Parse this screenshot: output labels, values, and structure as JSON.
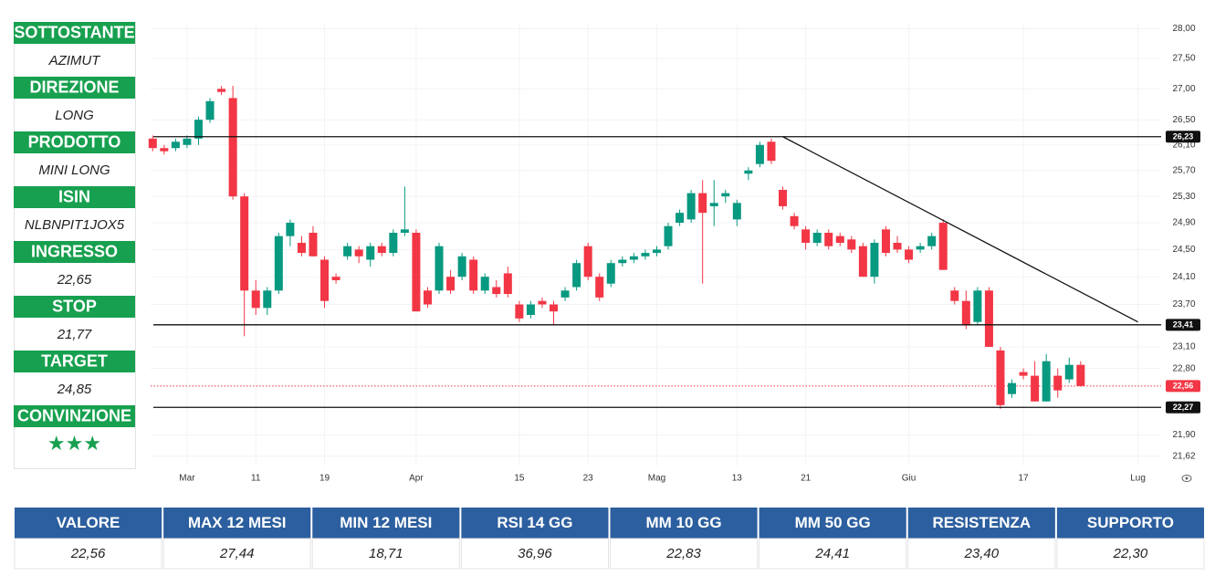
{
  "panel": [
    {
      "label": "SOTTOSTANTE",
      "value": "AZIMUT"
    },
    {
      "label": "DIREZIONE",
      "value": "LONG"
    },
    {
      "label": "PRODOTTO",
      "value": "MINI LONG"
    },
    {
      "label": "ISIN",
      "value": "NLBNPIT1JOX5"
    },
    {
      "label": "INGRESSO",
      "value": "22,65"
    },
    {
      "label": "STOP",
      "value": "21,77"
    },
    {
      "label": "TARGET",
      "value": "24,85"
    },
    {
      "label": "CONVINZIONE",
      "value": "★★★"
    }
  ],
  "chart_data": {
    "type": "candlestick",
    "yscale": "log",
    "grid": true,
    "up_color": "#089981",
    "down_color": "#f23645",
    "categories": [
      null,
      null,
      null,
      "Mar",
      null,
      null,
      null,
      null,
      null,
      "11",
      null,
      null,
      null,
      null,
      null,
      "19",
      null,
      null,
      null,
      null,
      null,
      null,
      null,
      "Apr",
      null,
      null,
      null,
      null,
      null,
      null,
      null,
      null,
      "15",
      null,
      null,
      null,
      null,
      null,
      "23",
      null,
      null,
      null,
      null,
      null,
      "Mag",
      null,
      null,
      null,
      null,
      null,
      null,
      "13",
      null,
      null,
      null,
      null,
      null,
      "21",
      null,
      null,
      null,
      null,
      null,
      null,
      null,
      null,
      "Giu",
      null,
      null,
      null,
      null,
      null,
      null,
      null,
      null,
      null,
      "17",
      null,
      null,
      null,
      null,
      null,
      null,
      null,
      null,
      null,
      "Lug",
      null
    ],
    "open": [
      26.2,
      26.05,
      26.05,
      26.1,
      26.2,
      26.5,
      27.0,
      26.85,
      25.3,
      23.9,
      23.65,
      23.9,
      24.7,
      24.6,
      24.75,
      24.35,
      24.1,
      24.4,
      24.5,
      24.35,
      24.55,
      24.45,
      24.75,
      24.75,
      23.9,
      23.9,
      24.1,
      24.1,
      24.35,
      23.9,
      23.95,
      24.15,
      23.7,
      23.55,
      23.75,
      23.7,
      23.8,
      23.95,
      24.55,
      24.1,
      24.0,
      24.3,
      24.35,
      24.4,
      24.45,
      24.55,
      24.9,
      24.95,
      25.35,
      25.15,
      25.3,
      24.95,
      25.65,
      25.8,
      26.15,
      25.4,
      25.0,
      24.8,
      24.6,
      24.75,
      24.7,
      24.65,
      24.55,
      24.1,
      24.8,
      24.6,
      24.5,
      24.5,
      24.55,
      24.9,
      23.9,
      23.75,
      23.45,
      23.9,
      23.05,
      22.45,
      22.75,
      22.7,
      22.35,
      22.7,
      22.65,
      22.85,
      null,
      null,
      null,
      null,
      null,
      null
    ],
    "high": [
      26.25,
      26.1,
      26.2,
      26.25,
      26.55,
      26.85,
      27.05,
      27.05,
      25.35,
      24.05,
      23.95,
      24.75,
      24.95,
      24.7,
      24.85,
      24.4,
      24.15,
      24.6,
      24.55,
      24.6,
      24.6,
      24.8,
      25.45,
      24.8,
      23.95,
      24.6,
      24.2,
      24.45,
      24.4,
      24.15,
      24.05,
      24.25,
      23.75,
      23.75,
      23.8,
      23.75,
      23.95,
      24.35,
      24.6,
      24.15,
      24.35,
      24.4,
      24.45,
      24.5,
      24.55,
      24.9,
      25.1,
      25.4,
      25.55,
      25.55,
      25.4,
      25.25,
      25.75,
      26.15,
      26.2,
      25.45,
      25.05,
      24.85,
      24.8,
      24.8,
      24.75,
      24.7,
      24.6,
      24.65,
      24.85,
      24.7,
      24.55,
      24.6,
      24.75,
      24.95,
      23.95,
      23.9,
      23.95,
      23.95,
      23.1,
      22.65,
      22.8,
      22.9,
      23.0,
      22.8,
      22.95,
      22.9,
      null,
      null,
      null,
      null,
      null,
      null
    ],
    "low": [
      26.0,
      25.95,
      26.0,
      26.05,
      26.1,
      26.45,
      26.9,
      25.25,
      23.25,
      23.55,
      23.55,
      23.85,
      24.55,
      24.4,
      24.4,
      23.65,
      24.0,
      24.35,
      24.3,
      24.25,
      24.4,
      24.4,
      24.7,
      23.6,
      23.65,
      23.85,
      23.85,
      24.05,
      23.85,
      23.85,
      23.8,
      23.8,
      23.45,
      23.5,
      23.65,
      23.4,
      23.75,
      23.9,
      24.05,
      23.75,
      23.95,
      24.25,
      24.3,
      24.35,
      24.4,
      24.5,
      24.85,
      24.9,
      24.0,
      24.85,
      25.2,
      24.85,
      25.55,
      25.75,
      25.8,
      25.1,
      24.8,
      24.5,
      24.55,
      24.5,
      24.55,
      24.45,
      24.1,
      24.0,
      24.4,
      24.45,
      24.3,
      24.45,
      24.5,
      24.2,
      23.7,
      23.35,
      23.4,
      23.1,
      22.25,
      22.4,
      22.65,
      22.35,
      22.35,
      22.4,
      22.6,
      22.55,
      null,
      null,
      null,
      null,
      null,
      null
    ],
    "close": [
      26.05,
      26.0,
      26.15,
      26.2,
      26.5,
      26.8,
      26.95,
      25.3,
      23.9,
      23.65,
      23.9,
      24.7,
      24.9,
      24.45,
      24.4,
      23.75,
      24.05,
      24.55,
      24.4,
      24.55,
      24.45,
      24.75,
      24.8,
      23.6,
      23.7,
      24.55,
      23.9,
      24.4,
      23.9,
      24.1,
      23.85,
      23.85,
      23.5,
      23.7,
      23.7,
      23.6,
      23.9,
      24.3,
      24.1,
      23.8,
      24.3,
      24.35,
      24.4,
      24.45,
      24.5,
      24.85,
      25.05,
      25.35,
      25.05,
      25.2,
      25.35,
      25.2,
      25.7,
      26.1,
      25.85,
      25.15,
      24.85,
      24.6,
      24.75,
      24.55,
      24.6,
      24.5,
      24.1,
      24.6,
      24.45,
      24.5,
      24.35,
      24.55,
      24.7,
      24.2,
      23.75,
      23.4,
      23.9,
      23.1,
      22.3,
      22.6,
      22.7,
      22.35,
      22.9,
      22.5,
      22.85,
      22.56,
      null,
      null,
      null,
      null,
      null,
      null
    ],
    "ylim": [
      21.5,
      28.1
    ],
    "yticks": [
      {
        "value": 28.0,
        "label": "28,00"
      },
      {
        "value": 27.5,
        "label": "27,50"
      },
      {
        "value": 27.0,
        "label": "27,00"
      },
      {
        "value": 26.5,
        "label": "26,50"
      },
      {
        "value": 26.1,
        "label": "26,10"
      },
      {
        "value": 25.7,
        "label": "25,70"
      },
      {
        "value": 25.3,
        "label": "25,30"
      },
      {
        "value": 24.9,
        "label": "24,90"
      },
      {
        "value": 24.5,
        "label": "24,50"
      },
      {
        "value": 24.1,
        "label": "24,10"
      },
      {
        "value": 23.7,
        "label": "23,70"
      },
      {
        "value": 23.1,
        "label": "23,10"
      },
      {
        "value": 22.8,
        "label": "22,80"
      },
      {
        "value": 21.9,
        "label": "21,90"
      },
      {
        "value": 21.62,
        "label": "21,62"
      }
    ],
    "levels": [
      {
        "value": 26.23,
        "label": "26,23"
      },
      {
        "value": 23.41,
        "label": "23,41"
      },
      {
        "value": 22.27,
        "label": "22,27"
      }
    ],
    "last": {
      "value": 22.56,
      "label": "22,56"
    },
    "trendline": {
      "x": [
        55,
        86
      ],
      "y": [
        26.23,
        23.45
      ]
    }
  },
  "table": {
    "header": [
      "VALORE",
      "MAX 12 MESI",
      "MIN 12 MESI",
      "RSI 14 GG",
      "MM 10 GG",
      "MM 50 GG",
      "RESISTENZA",
      "SUPPORTO"
    ],
    "rows": [
      [
        "22,56",
        "27,44",
        "18,71",
        "36,96",
        "22,83",
        "24,41",
        "23,40",
        "22,30"
      ]
    ]
  }
}
